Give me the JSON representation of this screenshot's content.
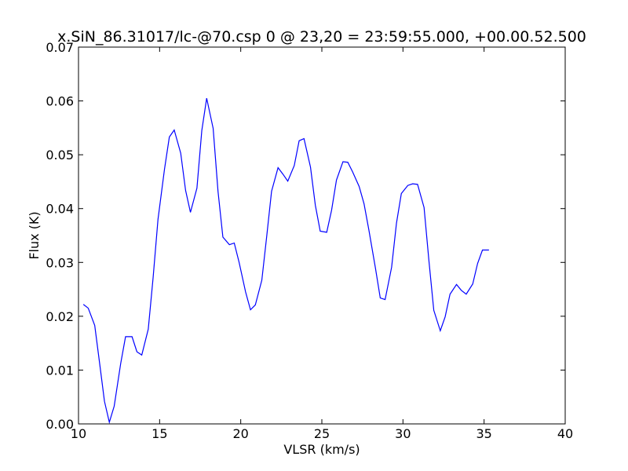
{
  "chart_data": {
    "type": "line",
    "title": "x.SiN_86.31017/lc-@70.csp 0 @ 23,20 = 23:59:55.000, +00.00.52.500",
    "xlabel": "VLSR (km/s)",
    "ylabel": "Flux (K)",
    "xlim": [
      10,
      40
    ],
    "ylim": [
      0,
      0.07
    ],
    "x_ticks": [
      10,
      15,
      20,
      25,
      30,
      35,
      40
    ],
    "x_tick_labels": [
      "10",
      "15",
      "20",
      "25",
      "30",
      "35",
      "40"
    ],
    "y_ticks": [
      0,
      0.01,
      0.02,
      0.03,
      0.04,
      0.05,
      0.06,
      0.07
    ],
    "y_tick_labels": [
      "0.00",
      "0.01",
      "0.02",
      "0.03",
      "0.04",
      "0.05",
      "0.06",
      "0.07"
    ],
    "grid": false,
    "line_color": "#0000ff",
    "series": [
      {
        "x": [
          10.3,
          10.6,
          11.0,
          11.3,
          11.6,
          11.9,
          12.2,
          12.6,
          12.9,
          13.3,
          13.6,
          13.9,
          14.3,
          14.6,
          14.9,
          15.3,
          15.6,
          15.9,
          16.3,
          16.6,
          16.9,
          17.3,
          17.6,
          17.9,
          18.3,
          18.6,
          18.9,
          19.3,
          19.6,
          19.9,
          20.3,
          20.6,
          20.9,
          21.3,
          21.6,
          21.9,
          22.3,
          22.6,
          22.9,
          23.3,
          23.6,
          23.9,
          24.3,
          24.6,
          24.9,
          25.3,
          25.6,
          25.9,
          26.3,
          26.6,
          26.9,
          27.3,
          27.6,
          27.9,
          28.3,
          28.6,
          28.9,
          29.3,
          29.6,
          29.9,
          30.3,
          30.6,
          30.9,
          31.3,
          31.6,
          31.9,
          32.3,
          32.6,
          32.9,
          33.3,
          33.6,
          33.9,
          34.3,
          34.6,
          34.9,
          35.3
        ],
        "values": [
          0.0222,
          0.0215,
          0.0183,
          0.0113,
          0.0042,
          0.0003,
          0.0033,
          0.0112,
          0.0162,
          0.0162,
          0.0134,
          0.0128,
          0.0176,
          0.0272,
          0.038,
          0.0473,
          0.0533,
          0.0546,
          0.0503,
          0.0434,
          0.0393,
          0.0438,
          0.0545,
          0.0605,
          0.0549,
          0.0432,
          0.0347,
          0.0333,
          0.0336,
          0.03,
          0.0245,
          0.0212,
          0.0221,
          0.0267,
          0.0348,
          0.0432,
          0.0476,
          0.0464,
          0.0451,
          0.048,
          0.0526,
          0.053,
          0.0477,
          0.0406,
          0.0358,
          0.0356,
          0.0397,
          0.0453,
          0.0487,
          0.0486,
          0.0468,
          0.0441,
          0.0409,
          0.036,
          0.029,
          0.0234,
          0.0231,
          0.0291,
          0.0373,
          0.0428,
          0.0443,
          0.0446,
          0.0445,
          0.0402,
          0.0303,
          0.0211,
          0.0173,
          0.0199,
          0.0241,
          0.0259,
          0.0248,
          0.0241,
          0.026,
          0.0298,
          0.0323,
          0.0323
        ]
      }
    ]
  }
}
